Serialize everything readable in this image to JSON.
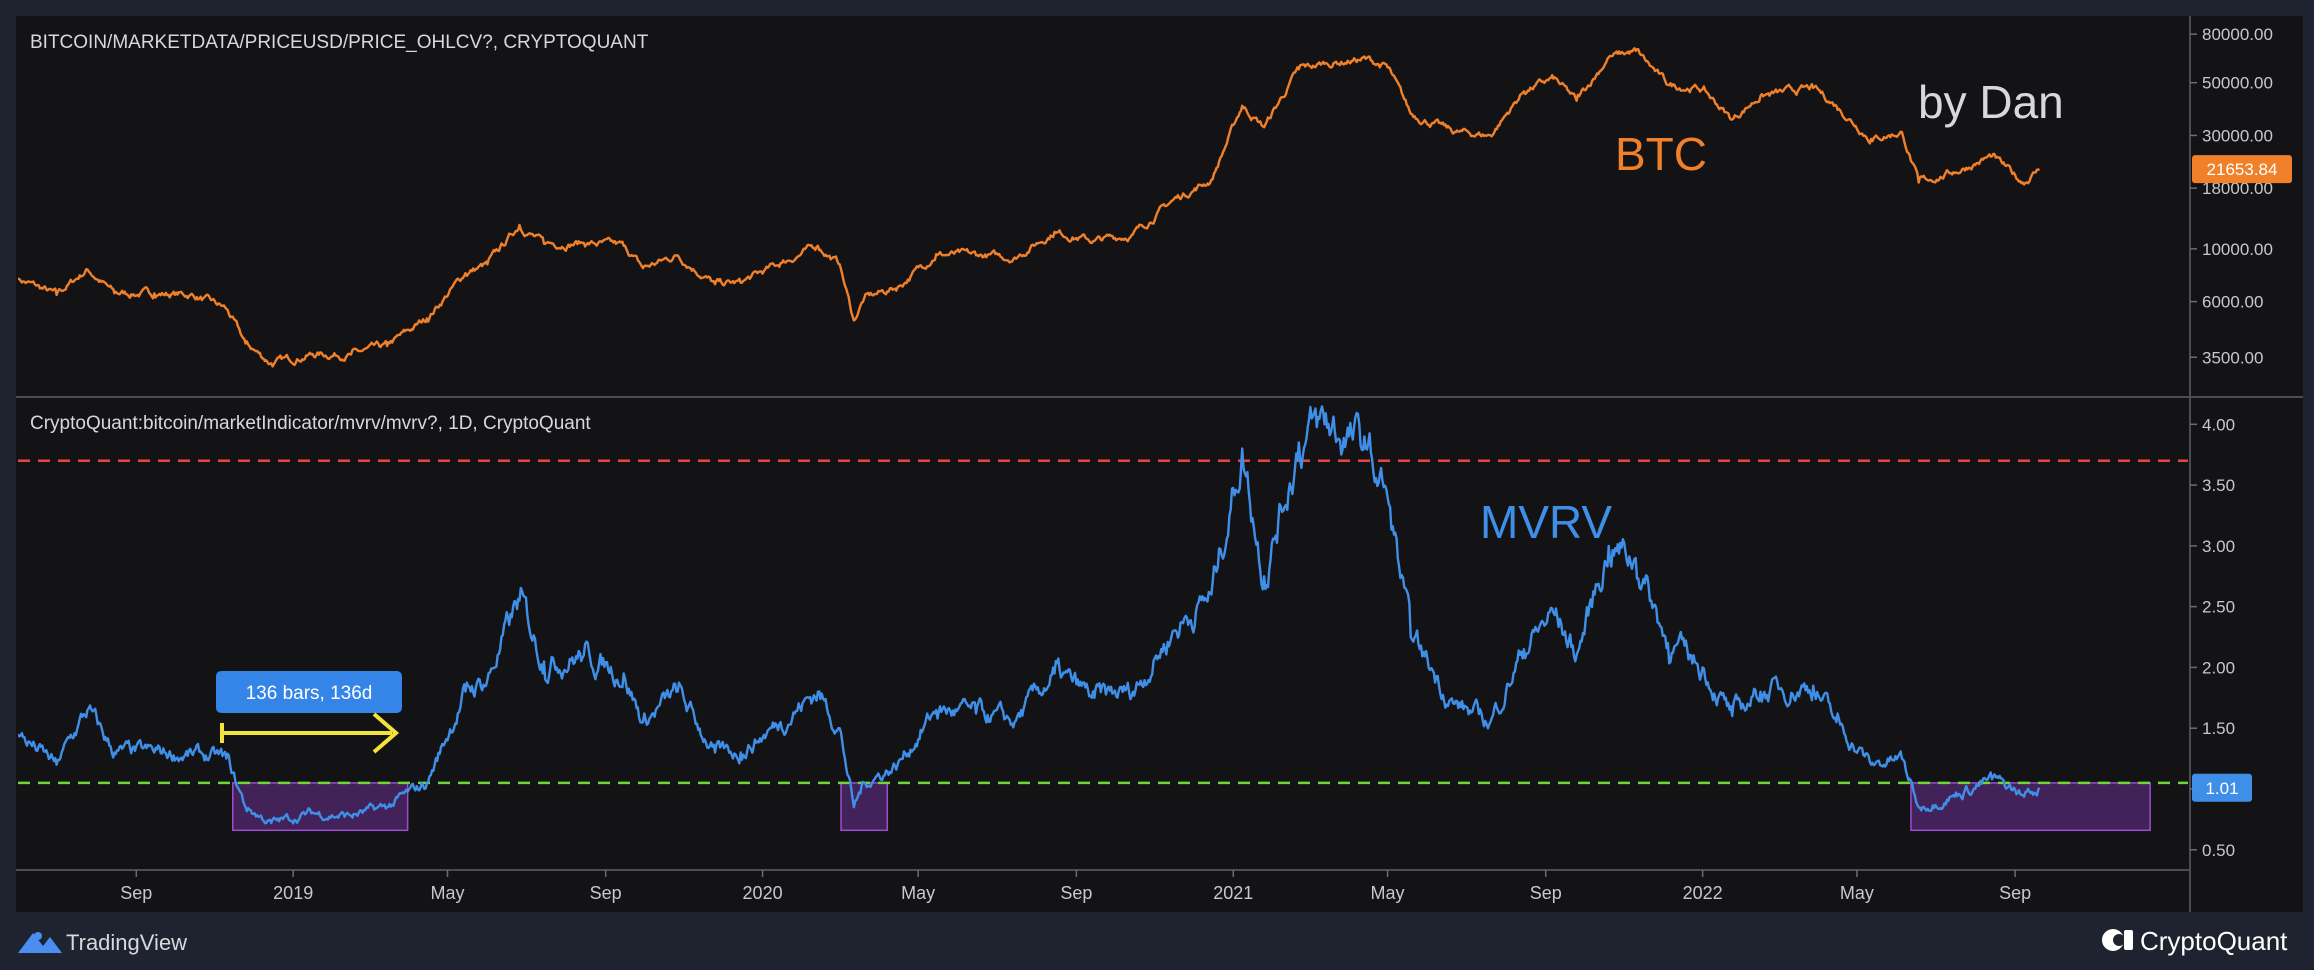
{
  "colors": {
    "background": "#131316",
    "frame": "#1f2330",
    "btc_line": "#f0802a",
    "mvrv_line": "#3f8fe8",
    "overvalued_line": "#e0483c",
    "undervalued_line": "#6fd63a",
    "highlight_box": "#6a2f8f",
    "callout": "#3585e8",
    "arrow": "#f2e33a",
    "axis_text": "#c8c8cc"
  },
  "top_panel": {
    "title": "BITCOIN/MARKETDATA/PRICEUSD/PRICE_OHLCV?, CRYPTOQUANT",
    "series_label": "BTC",
    "author_label": "by Dan",
    "price_tag": "21653.84",
    "axis_labels": [
      "80000.00",
      "50000.00",
      "30000.00",
      "18000.00",
      "10000.00",
      "6000.00",
      "3500.00"
    ]
  },
  "bottom_panel": {
    "title": "CryptoQuant:bitcoin/marketIndicator/mvrv/mvrv?, 1D, CryptoQuant",
    "series_label": "MVRV",
    "value_tag": "1.01",
    "callout_text": "136 bars, 136d",
    "axis_labels": [
      "4.00",
      "3.50",
      "3.00",
      "2.50",
      "2.00",
      "1.50",
      "1.00",
      "0.50"
    ]
  },
  "x_axis": {
    "labels": [
      "Sep",
      "2019",
      "May",
      "Sep",
      "2020",
      "May",
      "Sep",
      "2021",
      "May",
      "Sep",
      "2022",
      "May",
      "Sep"
    ]
  },
  "footer": {
    "left_brand": "TradingView",
    "right_brand": "CryptoQuant"
  },
  "chart_data": [
    {
      "type": "line",
      "scale": "log",
      "ylim": [
        2500,
        90000
      ],
      "x_range": [
        "2018-06-01",
        "2023-01-15"
      ],
      "title": "BITCOIN/MARKETDATA/PRICEUSD/PRICE_OHLCV?, CRYPTOQUANT",
      "series": [
        {
          "name": "BTC",
          "x": [
            "2018-06-01",
            "2018-07-01",
            "2018-07-25",
            "2018-08-15",
            "2018-09-15",
            "2018-10-15",
            "2018-11-10",
            "2018-11-25",
            "2018-12-15",
            "2019-01-15",
            "2019-02-15",
            "2019-03-15",
            "2019-04-15",
            "2019-05-15",
            "2019-06-01",
            "2019-06-26",
            "2019-07-15",
            "2019-08-15",
            "2019-09-15",
            "2019-09-30",
            "2019-10-27",
            "2019-11-25",
            "2019-12-15",
            "2020-01-15",
            "2020-02-13",
            "2020-03-01",
            "2020-03-12",
            "2020-03-20",
            "2020-04-15",
            "2020-05-15",
            "2020-06-15",
            "2020-07-15",
            "2020-08-15",
            "2020-09-15",
            "2020-10-15",
            "2020-11-15",
            "2020-12-15",
            "2021-01-08",
            "2021-01-25",
            "2021-02-21",
            "2021-03-13",
            "2021-04-14",
            "2021-05-01",
            "2021-05-19",
            "2021-06-22",
            "2021-07-20",
            "2021-08-15",
            "2021-09-07",
            "2021-09-25",
            "2021-10-20",
            "2021-11-10",
            "2021-12-05",
            "2022-01-01",
            "2022-01-24",
            "2022-02-15",
            "2022-03-28",
            "2022-04-15",
            "2022-05-12",
            "2022-06-05",
            "2022-06-18",
            "2022-07-15",
            "2022-08-14",
            "2022-09-07",
            "2022-09-20"
          ],
          "values": [
            7500,
            6400,
            8200,
            6500,
            6500,
            6400,
            5600,
            4000,
            3300,
            3600,
            3600,
            3900,
            5100,
            7900,
            8600,
            12600,
            10500,
            10600,
            10300,
            8300,
            9400,
            7100,
            7200,
            8700,
            10300,
            8600,
            5000,
            6200,
            6900,
            9500,
            9400,
            9200,
            11800,
            10800,
            11500,
            16000,
            19500,
            40000,
            32500,
            57000,
            60000,
            63000,
            58000,
            37000,
            31000,
            30000,
            46000,
            52000,
            42000,
            64000,
            68000,
            49000,
            47000,
            35000,
            44000,
            47500,
            40000,
            29000,
            31000,
            19000,
            21000,
            24500,
            19000,
            21654
          ]
        }
      ]
    },
    {
      "type": "line",
      "ylim": [
        0.35,
        4.2
      ],
      "x_range": [
        "2018-06-01",
        "2023-01-15"
      ],
      "title": "CryptoQuant:bitcoin/marketIndicator/mvrv/mvrv?, 1D, CryptoQuant",
      "series": [
        {
          "name": "MVRV",
          "x": [
            "2018-06-01",
            "2018-07-01",
            "2018-07-25",
            "2018-08-15",
            "2018-09-15",
            "2018-10-15",
            "2018-11-10",
            "2018-11-25",
            "2018-12-15",
            "2019-01-15",
            "2019-02-15",
            "2019-03-15",
            "2019-04-15",
            "2019-05-15",
            "2019-06-01",
            "2019-06-26",
            "2019-07-15",
            "2019-08-15",
            "2019-09-15",
            "2019-09-30",
            "2019-10-27",
            "2019-11-25",
            "2019-12-15",
            "2020-01-15",
            "2020-02-13",
            "2020-03-01",
            "2020-03-12",
            "2020-03-20",
            "2020-04-15",
            "2020-05-15",
            "2020-06-15",
            "2020-07-15",
            "2020-08-15",
            "2020-09-15",
            "2020-10-15",
            "2020-11-15",
            "2020-12-15",
            "2021-01-08",
            "2021-01-25",
            "2021-02-21",
            "2021-03-13",
            "2021-04-14",
            "2021-05-01",
            "2021-05-19",
            "2021-06-22",
            "2021-07-20",
            "2021-08-15",
            "2021-09-07",
            "2021-09-25",
            "2021-10-20",
            "2021-11-10",
            "2021-12-05",
            "2022-01-01",
            "2022-01-24",
            "2022-02-15",
            "2022-03-28",
            "2022-04-15",
            "2022-05-12",
            "2022-06-05",
            "2022-06-18",
            "2022-07-15",
            "2022-08-14",
            "2022-09-07",
            "2022-09-20"
          ],
          "values": [
            1.45,
            1.2,
            1.65,
            1.3,
            1.3,
            1.28,
            1.25,
            0.85,
            0.72,
            0.8,
            0.78,
            0.85,
            1.05,
            1.8,
            1.9,
            2.55,
            2.05,
            2.1,
            1.95,
            1.55,
            1.8,
            1.3,
            1.3,
            1.55,
            1.8,
            1.5,
            0.85,
            1.05,
            1.2,
            1.65,
            1.62,
            1.55,
            1.95,
            1.75,
            1.8,
            2.3,
            2.6,
            3.8,
            2.75,
            3.85,
            4.0,
            3.8,
            3.4,
            2.25,
            1.7,
            1.55,
            2.15,
            2.45,
            2.1,
            3.0,
            2.9,
            2.2,
            2.0,
            1.6,
            1.8,
            1.85,
            1.55,
            1.2,
            1.25,
            0.85,
            0.95,
            1.08,
            0.95,
            1.01
          ]
        }
      ],
      "reference_lines": [
        {
          "value": 3.7,
          "style": "dashed"
        },
        {
          "value": 1.05,
          "style": "dashed"
        }
      ],
      "highlight_ranges": [
        {
          "x": [
            "2018-11-15",
            "2019-03-31"
          ],
          "y": [
            0.66,
            1.05
          ]
        },
        {
          "x": [
            "2020-03-02",
            "2020-04-07"
          ],
          "y": [
            0.66,
            1.05
          ]
        },
        {
          "x": [
            "2022-06-12",
            "2022-12-15"
          ],
          "y": [
            0.66,
            1.05
          ]
        }
      ]
    }
  ]
}
